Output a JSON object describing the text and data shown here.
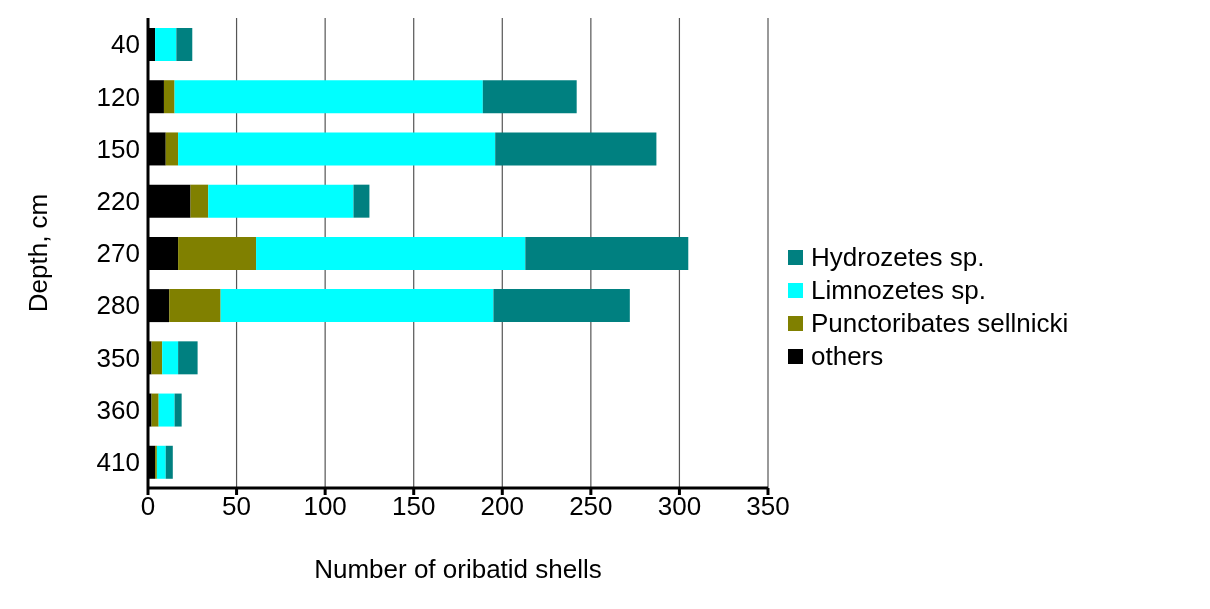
{
  "chart_data": {
    "type": "bar",
    "orientation": "horizontal",
    "stacked": true,
    "xlabel": "Number of oribatid shells",
    "ylabel": "Depth, cm",
    "categories": [
      "40",
      "120",
      "150",
      "220",
      "270",
      "280",
      "350",
      "360",
      "410"
    ],
    "series": [
      {
        "name": "others",
        "color": "#000000",
        "values": [
          4,
          9,
          10,
          24,
          17,
          12,
          2,
          2,
          4
        ]
      },
      {
        "name": "Punctoribates sellnicki",
        "color": "#808000",
        "values": [
          0,
          6,
          7,
          10,
          44,
          29,
          6,
          4,
          1
        ]
      },
      {
        "name": "Limnozetes sp.",
        "color": "#00ffff",
        "values": [
          12,
          174,
          179,
          82,
          152,
          154,
          9,
          9,
          5
        ]
      },
      {
        "name": "Hydrozetes sp.",
        "color": "#008080",
        "values": [
          9,
          53,
          91,
          9,
          92,
          77,
          11,
          4,
          4
        ]
      }
    ],
    "xlim": [
      0,
      350
    ],
    "xticks": [
      0,
      50,
      100,
      150,
      200,
      250,
      300,
      350
    ],
    "grid": "x",
    "legend": "right"
  }
}
